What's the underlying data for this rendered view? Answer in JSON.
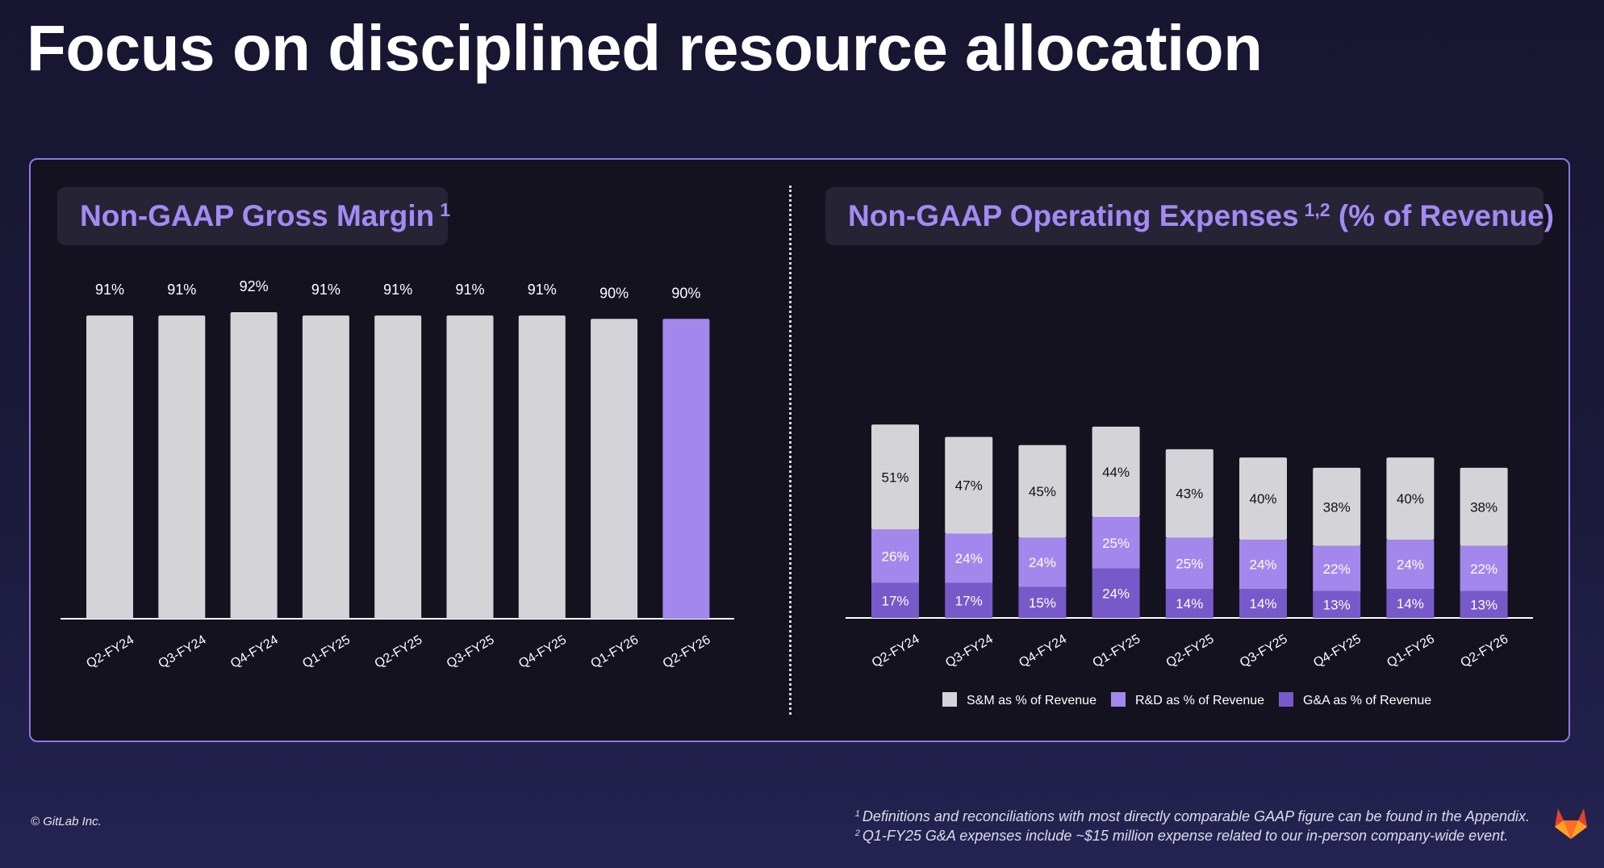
{
  "slide": {
    "title": "Focus on disciplined resource allocation",
    "copyright": "© GitLab Inc.",
    "footnotes": [
      {
        "marker": "1",
        "text": "Definitions and reconciliations with most directly comparable GAAP figure can be found in the Appendix."
      },
      {
        "marker": "2",
        "text": "Q1-FY25 G&A expenses include ~$15 million expense related to our in-person company-wide event."
      }
    ],
    "logo_icon": "gitlab-tanuki-icon"
  },
  "left_panel": {
    "title": "Non-GAAP Gross Margin",
    "title_sup": "1"
  },
  "right_panel": {
    "title": "Non-GAAP Operating Expenses",
    "title_sup": "1,2",
    "title_suffix": "(% of Revenue)"
  },
  "colors": {
    "bar_gray": "#d4d3d8",
    "highlight": "#a487ec",
    "sm": "#d4d3d8",
    "rd": "#a487ec",
    "ga": "#7859c9",
    "title_accent": "#a48af5",
    "panel_border": "#8e77e6"
  },
  "chart_data": [
    {
      "type": "bar",
      "title": "Non-GAAP Gross Margin",
      "categories": [
        "Q2-FY24",
        "Q3-FY24",
        "Q4-FY24",
        "Q1-FY25",
        "Q2-FY25",
        "Q3-FY25",
        "Q4-FY25",
        "Q1-FY26",
        "Q2-FY26"
      ],
      "values": [
        91,
        91,
        92,
        91,
        91,
        91,
        91,
        90,
        90
      ],
      "value_labels": [
        "91%",
        "91%",
        "92%",
        "91%",
        "91%",
        "91%",
        "91%",
        "90%",
        "90%"
      ],
      "highlight_index": 8,
      "ylim": [
        0,
        92
      ],
      "unit": "%"
    },
    {
      "type": "bar",
      "stacked": true,
      "title": "Non-GAAP Operating Expenses (% of Revenue)",
      "categories": [
        "Q2-FY24",
        "Q3-FY24",
        "Q4-FY24",
        "Q1-FY25",
        "Q2-FY25",
        "Q3-FY25",
        "Q4-FY25",
        "Q1-FY26",
        "Q2-FY26"
      ],
      "series": [
        {
          "name": "G&A as % of Revenue",
          "values": [
            17,
            17,
            15,
            24,
            14,
            14,
            13,
            14,
            13
          ]
        },
        {
          "name": "R&D as % of Revenue",
          "values": [
            26,
            24,
            24,
            25,
            25,
            24,
            22,
            24,
            22
          ]
        },
        {
          "name": "S&M as % of Revenue",
          "values": [
            51,
            47,
            45,
            44,
            43,
            40,
            38,
            40,
            38
          ]
        }
      ],
      "legend": [
        "S&M as % of Revenue",
        "R&D as % of Revenue",
        "G&A as % of Revenue"
      ],
      "legend_position": "bottom",
      "unit": "%"
    }
  ]
}
